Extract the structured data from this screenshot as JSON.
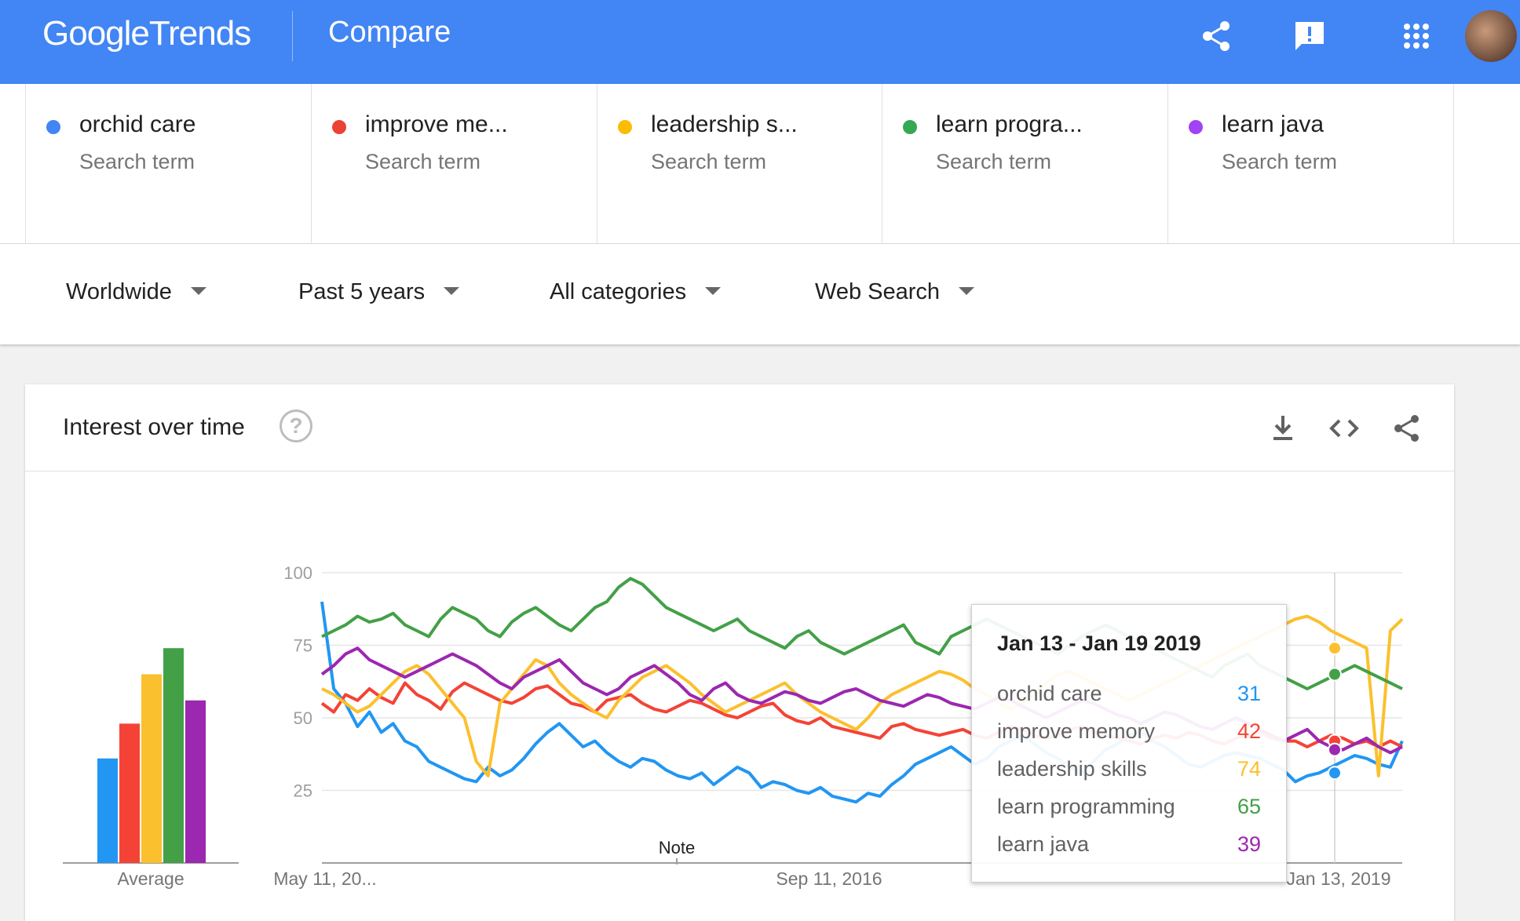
{
  "header": {
    "logo_google": "Google",
    "logo_trends": "Trends",
    "page_title": "Compare"
  },
  "terms": [
    {
      "label": "orchid care",
      "type": "Search term",
      "color": "#4285f4"
    },
    {
      "label": "improve me...",
      "type": "Search term",
      "color": "#ea4335"
    },
    {
      "label": "leadership s...",
      "type": "Search term",
      "color": "#fbbc04"
    },
    {
      "label": "learn progra...",
      "type": "Search term",
      "color": "#34a853"
    },
    {
      "label": "learn java",
      "type": "Search term",
      "color": "#a142f4"
    }
  ],
  "filters": {
    "region": "Worldwide",
    "time": "Past 5 years",
    "category": "All categories",
    "search_type": "Web Search"
  },
  "card": {
    "title": "Interest over time",
    "help": "?"
  },
  "tooltip": {
    "date": "Jan 13 - Jan 19 2019",
    "rows": [
      {
        "label": "orchid care",
        "value": "31",
        "color": "#2196f3"
      },
      {
        "label": "improve memory",
        "value": "42",
        "color": "#f44336"
      },
      {
        "label": "leadership skills",
        "value": "74",
        "color": "#fbc02d"
      },
      {
        "label": "learn programming",
        "value": "65",
        "color": "#43a047"
      },
      {
        "label": "learn java",
        "value": "39",
        "color": "#9c27b0"
      }
    ]
  },
  "chart_data": {
    "type": "line",
    "ylim": [
      0,
      100
    ],
    "yticks": [
      25,
      50,
      75,
      100
    ],
    "xlabels": [
      "May 11, 20...",
      "Sep 11, 2016",
      "Jan 13, 2019"
    ],
    "note_label": "Note",
    "average_label": "Average",
    "averages": [
      {
        "name": "orchid care",
        "value": 36,
        "color": "#2196f3"
      },
      {
        "name": "improve memory",
        "value": 48,
        "color": "#f44336"
      },
      {
        "name": "leadership skills",
        "value": 65,
        "color": "#fbc02d"
      },
      {
        "name": "learn programming",
        "value": 74,
        "color": "#43a047"
      },
      {
        "name": "learn java",
        "value": 56,
        "color": "#9c27b0"
      }
    ],
    "series": [
      {
        "name": "orchid care",
        "color": "#2196f3",
        "values": [
          90,
          60,
          55,
          47,
          52,
          45,
          48,
          42,
          40,
          35,
          33,
          31,
          29,
          28,
          33,
          30,
          32,
          36,
          41,
          45,
          48,
          44,
          40,
          42,
          38,
          35,
          33,
          36,
          35,
          32,
          30,
          29,
          31,
          27,
          30,
          33,
          31,
          26,
          28,
          27,
          25,
          24,
          26,
          23,
          22,
          21,
          24,
          23,
          27,
          30,
          34,
          36,
          38,
          40,
          37,
          34,
          36,
          40,
          42,
          44,
          41,
          38,
          36,
          33,
          31,
          35,
          39,
          41,
          44,
          45,
          42,
          40,
          37,
          34,
          33,
          35,
          37,
          38,
          37,
          36,
          34,
          32,
          28,
          30,
          31,
          33,
          35,
          37,
          36,
          34,
          33,
          42
        ]
      },
      {
        "name": "improve memory",
        "color": "#f44336",
        "values": [
          55,
          52,
          58,
          56,
          60,
          57,
          55,
          62,
          58,
          56,
          53,
          59,
          62,
          60,
          58,
          56,
          55,
          57,
          60,
          61,
          58,
          55,
          54,
          52,
          56,
          57,
          58,
          55,
          53,
          52,
          54,
          56,
          55,
          53,
          51,
          50,
          52,
          54,
          55,
          51,
          49,
          48,
          50,
          47,
          46,
          45,
          44,
          43,
          47,
          48,
          46,
          45,
          44,
          45,
          46,
          44,
          43,
          45,
          47,
          46,
          44,
          43,
          44,
          46,
          47,
          45,
          44,
          43,
          42,
          41,
          43,
          44,
          43,
          45,
          44,
          42,
          41,
          43,
          44,
          45,
          43,
          42,
          42,
          40,
          42,
          44,
          43,
          41,
          42,
          40,
          42,
          40
        ]
      },
      {
        "name": "leadership skills",
        "color": "#fbc02d",
        "values": [
          60,
          58,
          55,
          52,
          54,
          58,
          62,
          66,
          68,
          65,
          60,
          55,
          50,
          35,
          30,
          55,
          60,
          65,
          70,
          68,
          62,
          58,
          55,
          52,
          50,
          56,
          60,
          64,
          66,
          68,
          65,
          62,
          58,
          55,
          52,
          54,
          56,
          58,
          60,
          62,
          58,
          55,
          52,
          50,
          48,
          46,
          50,
          55,
          58,
          60,
          62,
          64,
          66,
          65,
          63,
          60,
          58,
          55,
          53,
          55,
          58,
          62,
          65,
          66,
          64,
          62,
          60,
          58,
          56,
          58,
          60,
          62,
          64,
          66,
          68,
          70,
          72,
          74,
          76,
          78,
          80,
          82,
          84,
          85,
          83,
          80,
          78,
          76,
          74,
          30,
          80,
          84
        ]
      },
      {
        "name": "learn programming",
        "color": "#43a047",
        "values": [
          78,
          80,
          82,
          85,
          83,
          84,
          86,
          82,
          80,
          78,
          84,
          88,
          86,
          84,
          80,
          78,
          83,
          86,
          88,
          85,
          82,
          80,
          84,
          88,
          90,
          95,
          98,
          96,
          92,
          88,
          86,
          84,
          82,
          80,
          82,
          84,
          80,
          78,
          76,
          74,
          78,
          80,
          76,
          74,
          72,
          74,
          76,
          78,
          80,
          82,
          76,
          74,
          72,
          78,
          80,
          82,
          84,
          82,
          80,
          78,
          76,
          74,
          72,
          75,
          78,
          80,
          82,
          80,
          78,
          76,
          74,
          72,
          70,
          68,
          66,
          64,
          68,
          70,
          72,
          68,
          66,
          64,
          62,
          60,
          62,
          64,
          66,
          68,
          66,
          64,
          62,
          60
        ]
      },
      {
        "name": "learn java",
        "color": "#9c27b0",
        "values": [
          65,
          68,
          72,
          74,
          70,
          68,
          66,
          64,
          66,
          68,
          70,
          72,
          70,
          68,
          65,
          62,
          60,
          64,
          66,
          68,
          70,
          66,
          62,
          60,
          58,
          60,
          64,
          66,
          68,
          65,
          62,
          58,
          56,
          60,
          62,
          58,
          56,
          55,
          57,
          59,
          58,
          56,
          55,
          57,
          59,
          60,
          58,
          56,
          55,
          54,
          56,
          58,
          57,
          55,
          54,
          53,
          55,
          57,
          56,
          54,
          52,
          50,
          52,
          54,
          56,
          55,
          53,
          51,
          50,
          48,
          50,
          52,
          51,
          49,
          47,
          46,
          48,
          50,
          48,
          46,
          44,
          42,
          44,
          46,
          42,
          40,
          39,
          41,
          43,
          40,
          38,
          40
        ]
      }
    ]
  }
}
